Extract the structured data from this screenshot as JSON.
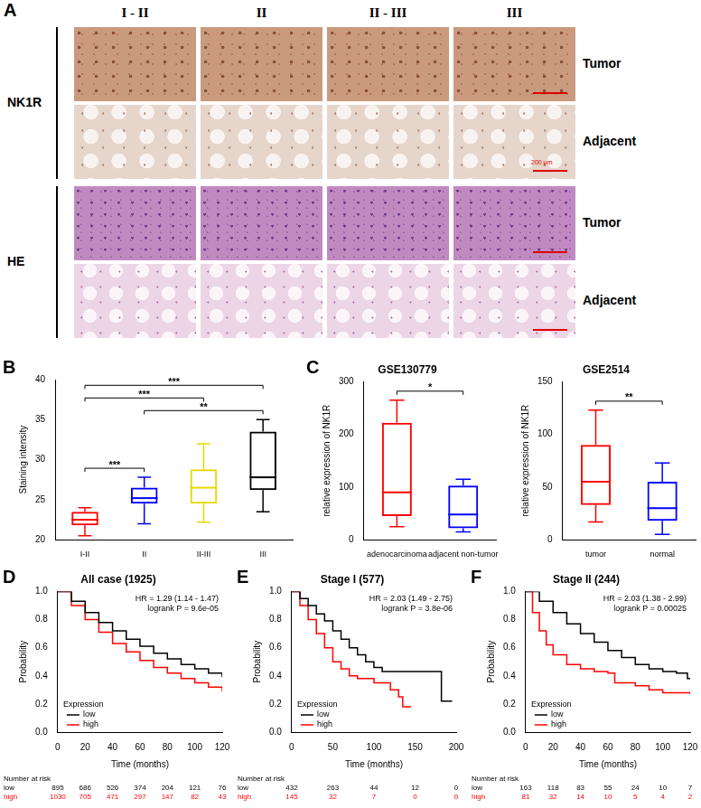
{
  "panel_A": {
    "letter": "A",
    "columns": [
      "I - II",
      "II",
      "II - III",
      "III"
    ],
    "row_groups": [
      {
        "label": "NK1R",
        "rows": [
          "Tumor",
          "Adjacent"
        ]
      },
      {
        "label": "HE",
        "rows": [
          "Tumor",
          "Adjacent"
        ]
      }
    ],
    "scale_bar": "200 μm"
  },
  "chart_data": [
    {
      "panel": "B",
      "type": "box",
      "ylabel": "Staining intensity",
      "categories": [
        "I-II",
        "II",
        "II-III",
        "III"
      ],
      "boxes": [
        {
          "min": 20.5,
          "q1": 21.8,
          "median": 22.5,
          "q3": 23.5,
          "max": 24
        },
        {
          "min": 22,
          "q1": 24.5,
          "median": 25.2,
          "q3": 26.5,
          "max": 27.8
        },
        {
          "min": 22.2,
          "q1": 24.5,
          "median": 26.5,
          "q3": 28.8,
          "max": 32
        },
        {
          "min": 23.5,
          "q1": 26.2,
          "median": 27.8,
          "q3": 33.5,
          "max": 35
        }
      ],
      "colors": [
        "#ff0000",
        "#0000ff",
        "#e6d800",
        "#000000"
      ],
      "ylim": [
        20,
        40
      ],
      "yticks": [
        20,
        25,
        30,
        35,
        40
      ],
      "comparisons": [
        {
          "from": "I-II",
          "to": "II",
          "label": "***"
        },
        {
          "from": "II",
          "to": "III",
          "label": "**"
        },
        {
          "from": "I-II",
          "to": "II-III",
          "label": "***"
        },
        {
          "from": "I-II",
          "to": "III",
          "label": "***"
        }
      ]
    },
    {
      "panel": "C",
      "type": "box",
      "title": "GSE130779",
      "ylabel": "relative expression of NK1R",
      "categories": [
        "adenocarcinoma",
        "adjacent non-tumor"
      ],
      "boxes": [
        {
          "min": 25,
          "q1": 45,
          "median": 90,
          "q3": 222,
          "max": 265
        },
        {
          "min": 15,
          "q1": 22,
          "median": 48,
          "q3": 103,
          "max": 115
        }
      ],
      "colors": [
        "#ff0000",
        "#0000ff"
      ],
      "ylim": [
        0,
        300
      ],
      "yticks": [
        0,
        100,
        200,
        300
      ],
      "comparisons": [
        {
          "from": "adenocarcinoma",
          "to": "adjacent non-tumor",
          "label": "*"
        }
      ]
    },
    {
      "type": "box",
      "title": "GSE2514",
      "ylabel": "relative expression of NK1R",
      "categories": [
        "tumor",
        "normal"
      ],
      "boxes": [
        {
          "min": 17,
          "q1": 33,
          "median": 55,
          "q3": 90,
          "max": 123
        },
        {
          "min": 5,
          "q1": 18,
          "median": 30,
          "q3": 55,
          "max": 73
        }
      ],
      "colors": [
        "#ff0000",
        "#0000ff"
      ],
      "ylim": [
        0,
        150
      ],
      "yticks": [
        0,
        50,
        100,
        150
      ],
      "comparisons": [
        {
          "from": "tumor",
          "to": "normal",
          "label": "**"
        }
      ]
    },
    {
      "panel": "D",
      "type": "survival",
      "title": "All case (1925)",
      "xlabel": "Time (months)",
      "ylabel": "Probability",
      "xlim": [
        0,
        120
      ],
      "xticks": [
        0,
        20,
        40,
        60,
        80,
        100,
        120
      ],
      "ylim": [
        0,
        1
      ],
      "yticks": [
        {
          "value": 0,
          "label": "0.0"
        },
        {
          "value": 0.2,
          "label": "0.2"
        },
        {
          "value": 0.4,
          "label": "0.4"
        },
        {
          "value": 0.6,
          "label": "0.6"
        },
        {
          "value": 0.8,
          "label": "0.8"
        },
        {
          "value": 1,
          "label": "1.0"
        }
      ],
      "annotations": [
        "HR = 1.29 (1.14 - 1.47)",
        "logrank P = 9.6e-05"
      ],
      "legend_title": "Expression",
      "legend": "lower left",
      "series": [
        {
          "name": "low",
          "color": "#000000",
          "x": [
            0,
            10,
            20,
            30,
            40,
            50,
            60,
            70,
            80,
            90,
            100,
            110,
            120
          ],
          "values": [
            1,
            0.93,
            0.85,
            0.78,
            0.72,
            0.66,
            0.61,
            0.56,
            0.52,
            0.48,
            0.45,
            0.42,
            0.39
          ]
        },
        {
          "name": "high",
          "color": "#ff0000",
          "x": [
            0,
            10,
            20,
            30,
            40,
            50,
            60,
            70,
            80,
            90,
            100,
            110,
            120
          ],
          "values": [
            1,
            0.9,
            0.8,
            0.71,
            0.63,
            0.57,
            0.51,
            0.46,
            0.42,
            0.38,
            0.35,
            0.32,
            0.29
          ]
        }
      ],
      "at_risk": {
        "title": "Number at risk",
        "times": [
          0,
          20,
          40,
          60,
          80,
          100,
          120
        ],
        "rows": [
          {
            "name": "low",
            "counts": [
              895,
              686,
              526,
              374,
              204,
              121,
              76
            ]
          },
          {
            "name": "high",
            "counts": [
              1030,
              705,
              471,
              297,
              147,
              82,
              43
            ]
          }
        ]
      }
    },
    {
      "panel": "E",
      "type": "survival",
      "title": "Stage I (577)",
      "xlabel": "Time (months)",
      "ylabel": "Probability",
      "xlim": [
        0,
        200
      ],
      "xticks": [
        0,
        50,
        100,
        150,
        200
      ],
      "ylim": [
        0,
        1
      ],
      "yticks": [
        {
          "value": 0,
          "label": "0.0"
        },
        {
          "value": 0.2,
          "label": "0.2"
        },
        {
          "value": 0.4,
          "label": "0.4"
        },
        {
          "value": 0.6,
          "label": "0.6"
        },
        {
          "value": 0.8,
          "label": "0.8"
        },
        {
          "value": 1,
          "label": "1.0"
        }
      ],
      "annotations": [
        "HR = 2.03 (1.49 - 2.75)",
        "logrank P = 3.8e-06"
      ],
      "legend_title": "Expression",
      "legend": "lower left",
      "series": [
        {
          "name": "low",
          "color": "#000000",
          "x": [
            0,
            10,
            20,
            30,
            40,
            50,
            60,
            70,
            80,
            90,
            100,
            110,
            150,
            180,
            182,
            195
          ],
          "values": [
            1,
            0.95,
            0.9,
            0.84,
            0.79,
            0.72,
            0.66,
            0.6,
            0.55,
            0.5,
            0.46,
            0.43,
            0.43,
            0.43,
            0.22,
            0.22
          ]
        },
        {
          "name": "high",
          "color": "#ff0000",
          "x": [
            0,
            10,
            20,
            30,
            40,
            50,
            60,
            70,
            80,
            100,
            120,
            130,
            135,
            145
          ],
          "values": [
            1,
            0.9,
            0.8,
            0.7,
            0.6,
            0.5,
            0.45,
            0.4,
            0.38,
            0.35,
            0.3,
            0.25,
            0.18,
            0.18
          ]
        }
      ],
      "at_risk": {
        "title": "Number at risk",
        "times": [
          0,
          50,
          100,
          150,
          200
        ],
        "rows": [
          {
            "name": "low",
            "counts": [
              432,
              263,
              44,
              12,
              0
            ]
          },
          {
            "name": "high",
            "counts": [
              145,
              32,
              7,
              0,
              0
            ]
          }
        ]
      }
    },
    {
      "panel": "F",
      "type": "survival",
      "title": "Stage II (244)",
      "xlabel": "Time (months)",
      "ylabel": "Probability",
      "xlim": [
        0,
        120
      ],
      "xticks": [
        0,
        20,
        40,
        60,
        80,
        100,
        120
      ],
      "ylim": [
        0,
        1
      ],
      "yticks": [
        {
          "value": 0,
          "label": "0.0"
        },
        {
          "value": 0.2,
          "label": "0.2"
        },
        {
          "value": 0.4,
          "label": "0.4"
        },
        {
          "value": 0.6,
          "label": "0.6"
        },
        {
          "value": 0.8,
          "label": "0.8"
        },
        {
          "value": 1,
          "label": "1.0"
        }
      ],
      "annotations": [
        "HR = 2.03 (1.38 - 2.99)",
        "logrank P = 0.00025"
      ],
      "legend_title": "Expression",
      "legend": "lower left",
      "series": [
        {
          "name": "low",
          "color": "#000000",
          "x": [
            0,
            10,
            20,
            30,
            40,
            50,
            60,
            70,
            80,
            90,
            100,
            110,
            118,
            120
          ],
          "values": [
            1,
            0.93,
            0.85,
            0.77,
            0.7,
            0.64,
            0.58,
            0.53,
            0.48,
            0.45,
            0.43,
            0.42,
            0.38,
            0.38
          ]
        },
        {
          "name": "high",
          "color": "#ff0000",
          "x": [
            0,
            5,
            10,
            15,
            20,
            30,
            40,
            50,
            60,
            65,
            80,
            90,
            100,
            120
          ],
          "values": [
            1,
            0.85,
            0.72,
            0.62,
            0.55,
            0.48,
            0.45,
            0.43,
            0.42,
            0.35,
            0.33,
            0.3,
            0.28,
            0.27
          ]
        }
      ],
      "at_risk": {
        "title": "Number at risk",
        "times": [
          0,
          20,
          40,
          60,
          80,
          100,
          120
        ],
        "rows": [
          {
            "name": "low",
            "counts": [
              163,
              118,
              83,
              55,
              24,
              10,
              7
            ]
          },
          {
            "name": "high",
            "counts": [
              81,
              32,
              14,
              10,
              5,
              4,
              2
            ]
          }
        ]
      }
    }
  ]
}
